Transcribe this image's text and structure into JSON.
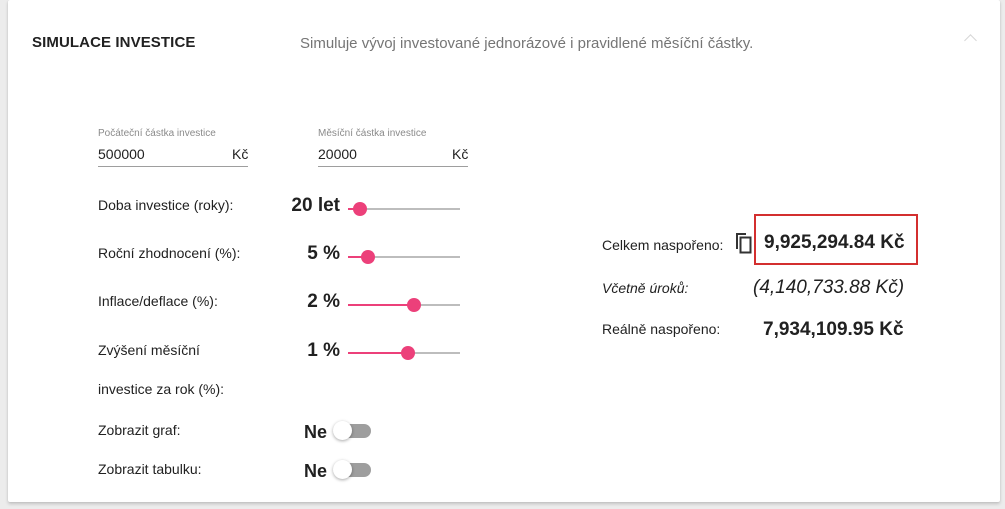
{
  "header": {
    "title": "SIMULACE INVESTICE",
    "subtitle": "Simuluje vývoj investované jednorázové i pravidlené měsíční částky.",
    "collapse_icon": "chevron-up-icon"
  },
  "inputs": {
    "initial": {
      "label": "Počáteční částka investice",
      "value": "500000",
      "suffix": "Kč"
    },
    "monthly": {
      "label": "Měsíční částka investice",
      "value": "20000",
      "suffix": "Kč"
    }
  },
  "sliders": {
    "years": {
      "label": "Doba investice (roky):",
      "value": "20 let",
      "level": 0.05
    },
    "return": {
      "label": "Roční zhodnocení (%):",
      "value": "5 %",
      "level": 0.13
    },
    "inflation": {
      "label": "Inflace/deflace (%):",
      "value": "2 %",
      "level": 0.6
    },
    "increase": {
      "label_line1": "Zvýšení měsíční",
      "label_line2": "investice za rok (%):",
      "value": "1 %",
      "level": 0.54
    }
  },
  "toggles": {
    "graph": {
      "label": "Zobrazit graf:",
      "value": "Ne"
    },
    "table": {
      "label": "Zobrazit tabulku:",
      "value": "Ne"
    }
  },
  "results": {
    "total": {
      "label": "Celkem naspořeno:",
      "value": "9,925,294.84 Kč",
      "copy_icon": "copy-icon"
    },
    "interest": {
      "label": "Včetně úroků:",
      "value": "(4,140,733.88 Kč)"
    },
    "real": {
      "label": "Reálně naspořeno:",
      "value": "7,934,109.95 Kč"
    }
  },
  "colors": {
    "accent": "#ec407a",
    "highlight": "#d32f2f",
    "toggle_off": "#9e9e9e"
  }
}
